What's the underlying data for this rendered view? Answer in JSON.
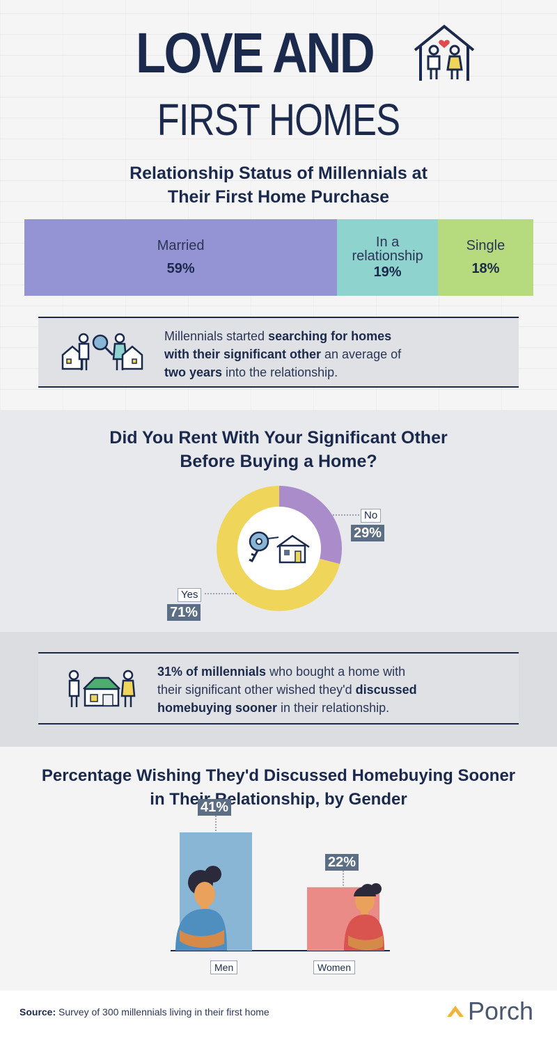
{
  "header": {
    "title_line1": "LOVE AND",
    "title_line2": "FIRST HOMES"
  },
  "relationship_section": {
    "title_line1": "Relationship Status of Millennials at",
    "title_line2": "Their First Home Purchase"
  },
  "search_info": {
    "pre": "Millennials started ",
    "bold1": "searching for homes",
    "bold2": "with their significant other",
    "mid": " an average of",
    "bold3": "two years",
    "post": " into the relationship."
  },
  "rent_section": {
    "title_line1": "Did You Rent With Your Significant Other",
    "title_line2": "Before Buying a Home?"
  },
  "discuss_info": {
    "bold1": "31% of millennials",
    "mid1": " who bought a home with",
    "line2a": "their significant other wished they'd ",
    "bold2": "discussed",
    "bold3": "homebuying sooner",
    "post": " in their relationship."
  },
  "gender_section": {
    "title_line1": "Percentage Wishing They'd Discussed Homebuying Sooner",
    "title_line2": "in Their Relationship, by Gender"
  },
  "footer": {
    "source_label": "Source:",
    "source_text": " Survey of 300 millennials living in their first home",
    "brand": "Porch"
  },
  "colors": {
    "navy": "#1b2a4c",
    "married": "#9494d4",
    "relationship": "#8fd3cf",
    "single": "#b6db7e",
    "donut_no": "#a98cc9",
    "donut_yes": "#efd65a",
    "men_bar": "#8ab6d6",
    "women_bar": "#ea8b88",
    "tag": "#5c6e84"
  },
  "chart_data": [
    {
      "type": "bar",
      "orientation": "stacked-horizontal",
      "title": "Relationship Status of Millennials at Their First Home Purchase",
      "categories": [
        "Married",
        "In a relationship",
        "Single"
      ],
      "values": [
        59,
        19,
        18
      ],
      "value_labels": [
        "59%",
        "19%",
        "18%"
      ],
      "category_label_lines": [
        [
          "Married"
        ],
        [
          "In a",
          "relationship"
        ],
        [
          "Single"
        ]
      ]
    },
    {
      "type": "pie",
      "variant": "donut",
      "title": "Did You Rent With Your Significant Other Before Buying a Home?",
      "categories": [
        "No",
        "Yes"
      ],
      "values": [
        29,
        71
      ],
      "value_labels": [
        "29%",
        "71%"
      ]
    },
    {
      "type": "bar",
      "title": "Percentage Wishing They'd Discussed Homebuying Sooner in Their Relationship, by Gender",
      "categories": [
        "Men",
        "Women"
      ],
      "values": [
        41,
        22
      ],
      "value_labels": [
        "41%",
        "22%"
      ]
    }
  ]
}
